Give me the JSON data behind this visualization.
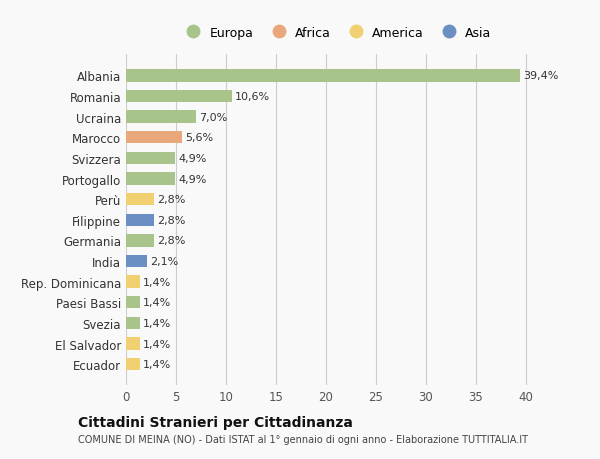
{
  "categories": [
    "Albania",
    "Romania",
    "Ucraina",
    "Marocco",
    "Svizzera",
    "Portogallo",
    "Perù",
    "Filippine",
    "Germania",
    "India",
    "Rep. Dominicana",
    "Paesi Bassi",
    "Svezia",
    "El Salvador",
    "Ecuador"
  ],
  "values": [
    39.4,
    10.6,
    7.0,
    5.6,
    4.9,
    4.9,
    2.8,
    2.8,
    2.8,
    2.1,
    1.4,
    1.4,
    1.4,
    1.4,
    1.4
  ],
  "labels": [
    "39,4%",
    "10,6%",
    "7,0%",
    "5,6%",
    "4,9%",
    "4,9%",
    "2,8%",
    "2,8%",
    "2,8%",
    "2,1%",
    "1,4%",
    "1,4%",
    "1,4%",
    "1,4%",
    "1,4%"
  ],
  "colors": [
    "#a8c48a",
    "#a8c48a",
    "#a8c48a",
    "#e8a87c",
    "#a8c48a",
    "#a8c48a",
    "#f0d070",
    "#6b8fc2",
    "#a8c48a",
    "#6b8fc2",
    "#f0d070",
    "#a8c48a",
    "#a8c48a",
    "#f0d070",
    "#f0d070"
  ],
  "legend_labels": [
    "Europa",
    "Africa",
    "America",
    "Asia"
  ],
  "legend_colors": [
    "#a8c48a",
    "#e8a87c",
    "#f0d070",
    "#6b8fc2"
  ],
  "xlim": [
    0,
    42
  ],
  "xticks": [
    0,
    5,
    10,
    15,
    20,
    25,
    30,
    35,
    40
  ],
  "title": "Cittadini Stranieri per Cittadinanza",
  "subtitle": "COMUNE DI MEINA (NO) - Dati ISTAT al 1° gennaio di ogni anno - Elaborazione TUTTITALIA.IT",
  "bg_color": "#f9f9f9",
  "grid_color": "#cccccc",
  "bar_height": 0.6
}
